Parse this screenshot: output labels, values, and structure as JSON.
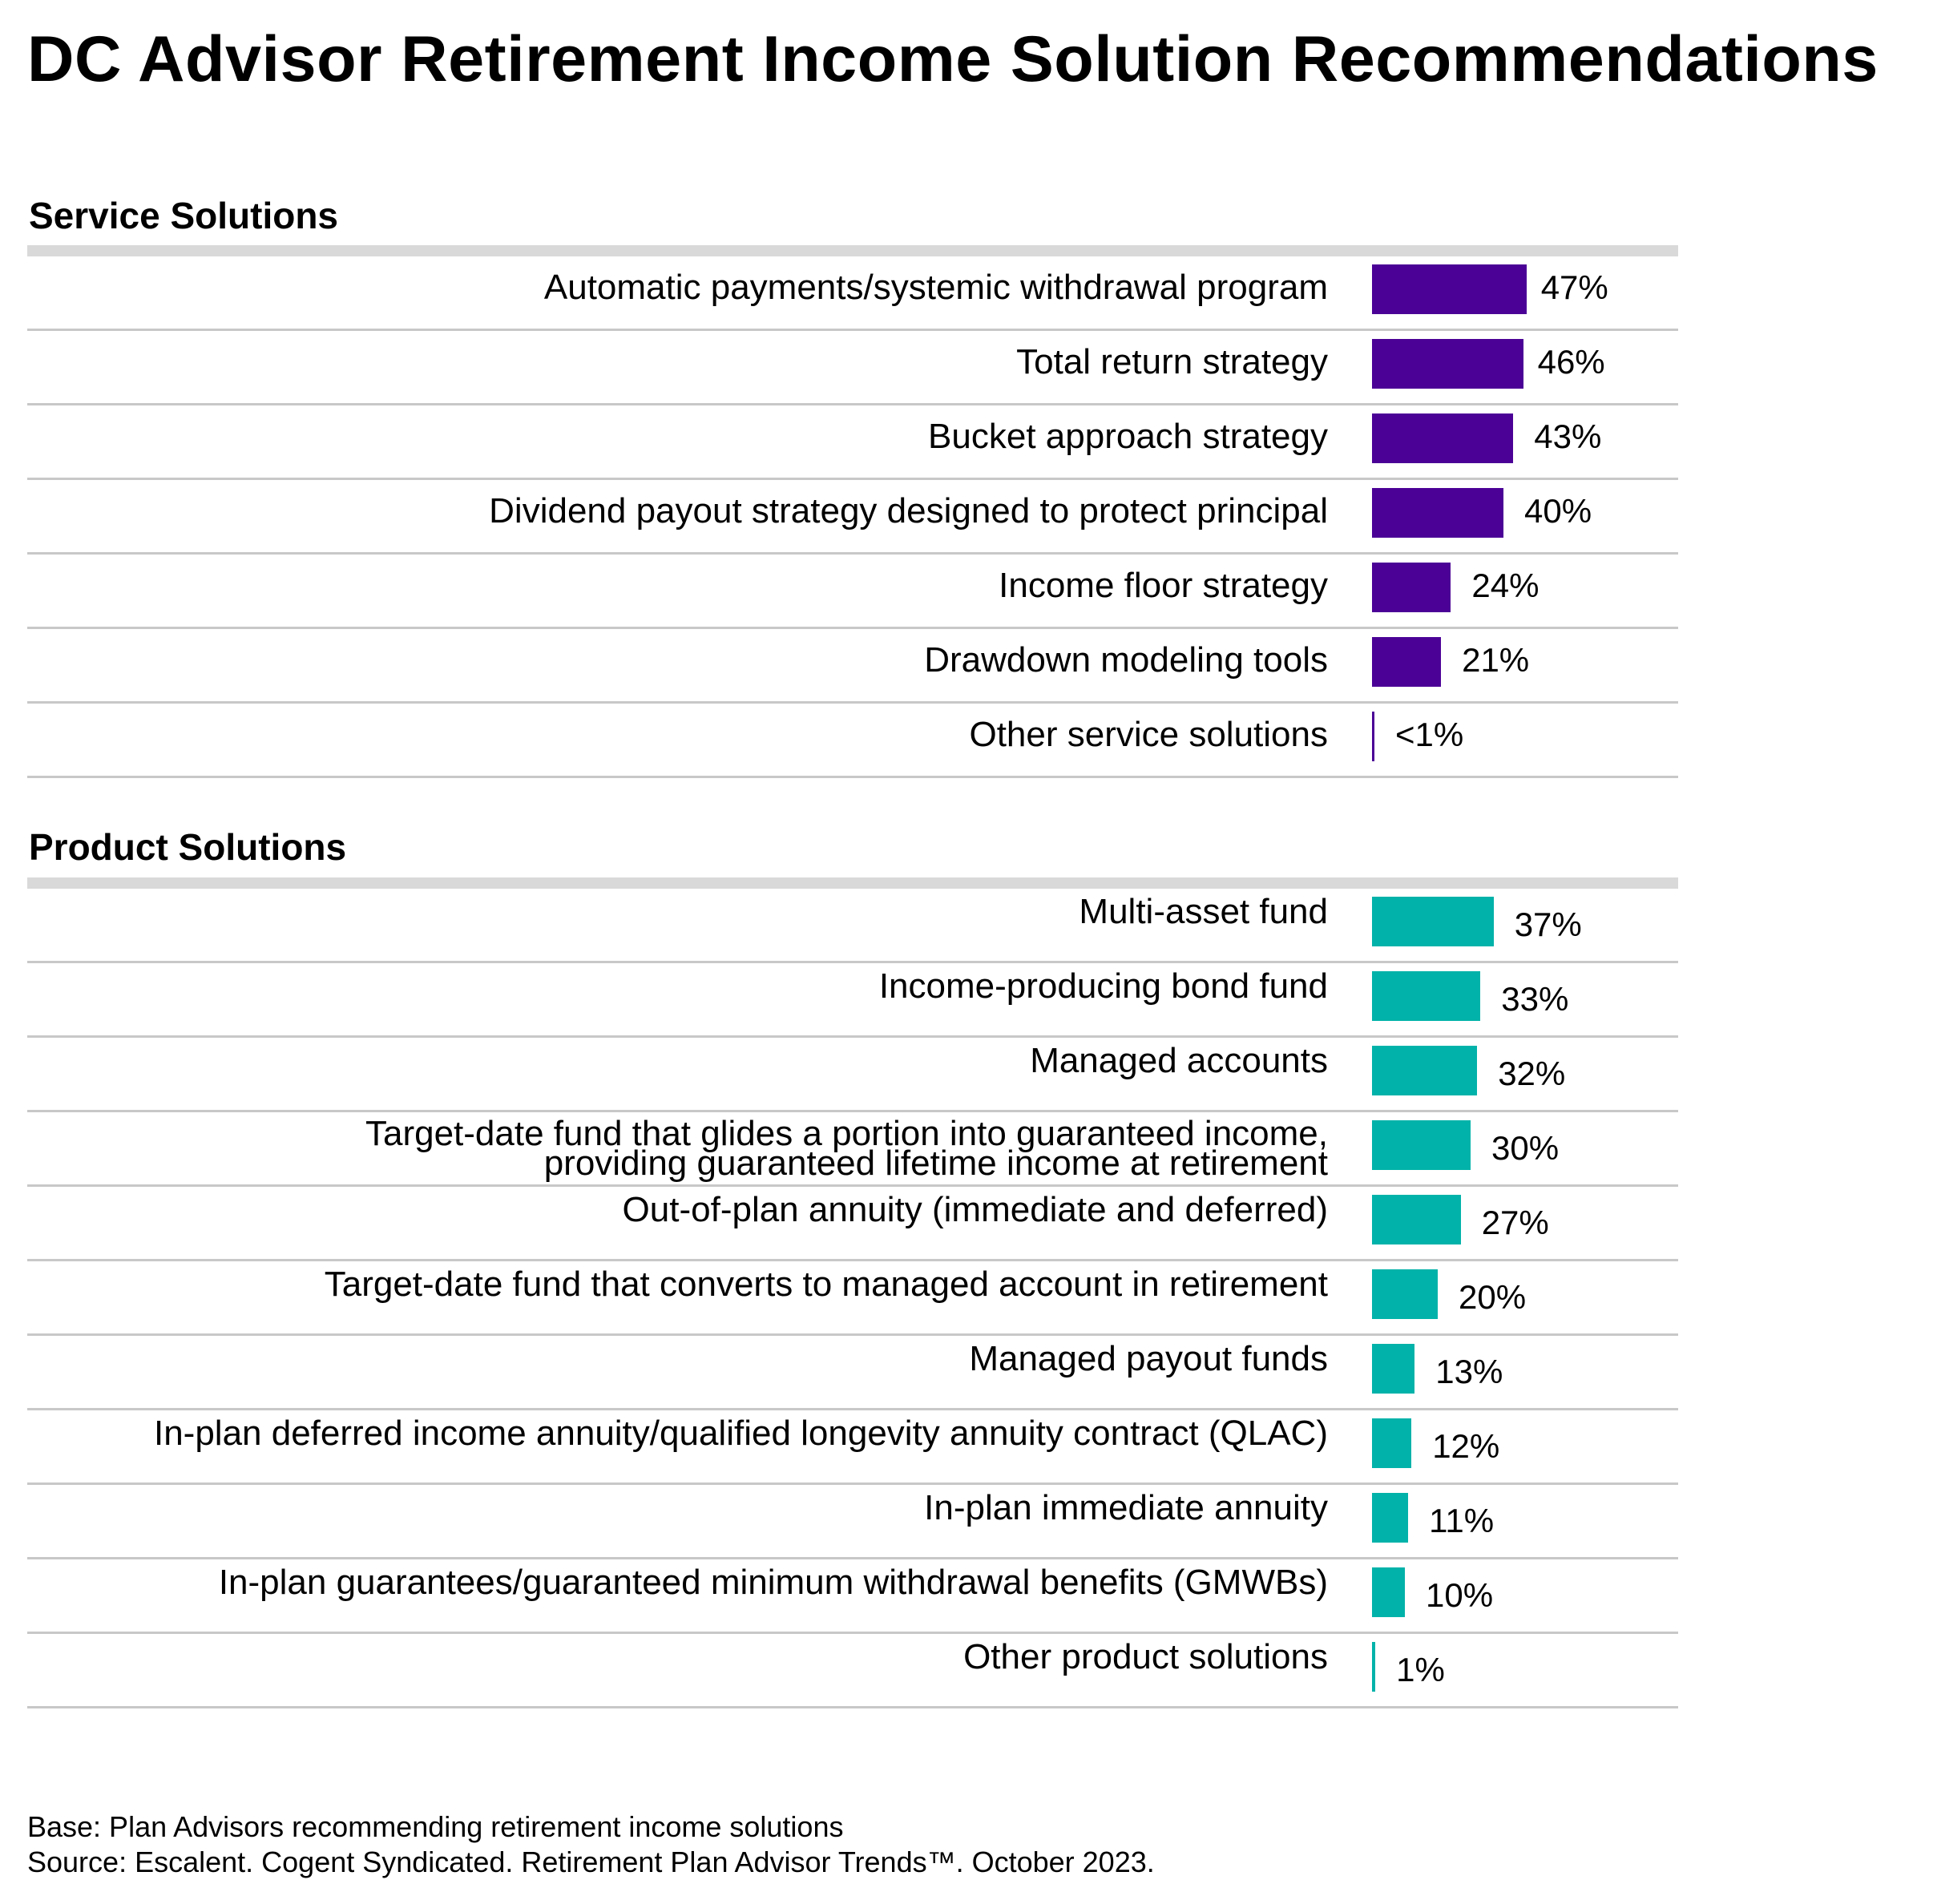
{
  "title": "DC Advisor Retirement Income Solution Recommendations",
  "colors": {
    "service": "#4b0096",
    "product": "#00b2a9",
    "rule": "#c8c8c8",
    "header_rule": "#d9d9d9"
  },
  "chart_data": [
    {
      "type": "bar",
      "orientation": "horizontal",
      "title": "Service Solutions",
      "color": "#4b0096",
      "xlim": [
        0,
        100
      ],
      "categories": [
        "Automatic payments/systemic withdrawal program",
        "Total return strategy",
        "Bucket approach strategy",
        "Dividend payout strategy designed to protect principal",
        "Income floor strategy",
        "Drawdown modeling tools",
        "Other service solutions"
      ],
      "values": [
        47,
        46,
        43,
        40,
        24,
        21,
        0.4
      ],
      "value_labels": [
        "47%",
        "46%",
        "43%",
        "40%",
        "24%",
        "21%",
        "<1%"
      ]
    },
    {
      "type": "bar",
      "orientation": "horizontal",
      "title": "Product Solutions",
      "color": "#00b2a9",
      "xlim": [
        0,
        100
      ],
      "categories": [
        "Multi-asset fund",
        "Income-producing bond fund",
        "Managed accounts",
        "Target-date fund that glides a portion into guaranteed income, providing guaranteed lifetime income at retirement",
        "Out-of-plan annuity (immediate and deferred)",
        "Target-date fund that converts to managed account in retirement",
        "Managed payout funds",
        "In-plan deferred income annuity/qualified longevity annuity contract (QLAC)",
        "In-plan immediate annuity",
        "In-plan guarantees/guaranteed minimum withdrawal benefits (GMWBs)",
        "Other product solutions"
      ],
      "values": [
        37,
        33,
        32,
        30,
        27,
        20,
        13,
        12,
        11,
        10,
        1
      ],
      "value_labels": [
        "37%",
        "33%",
        "32%",
        "30%",
        "27%",
        "20%",
        "13%",
        "12%",
        "11%",
        "10%",
        "1%"
      ]
    }
  ],
  "footnotes": {
    "base": "Base: Plan Advisors recommending retirement income solutions",
    "source": "Source: Escalent. Cogent Syndicated. Retirement Plan Advisor Trends™. October 2023."
  }
}
